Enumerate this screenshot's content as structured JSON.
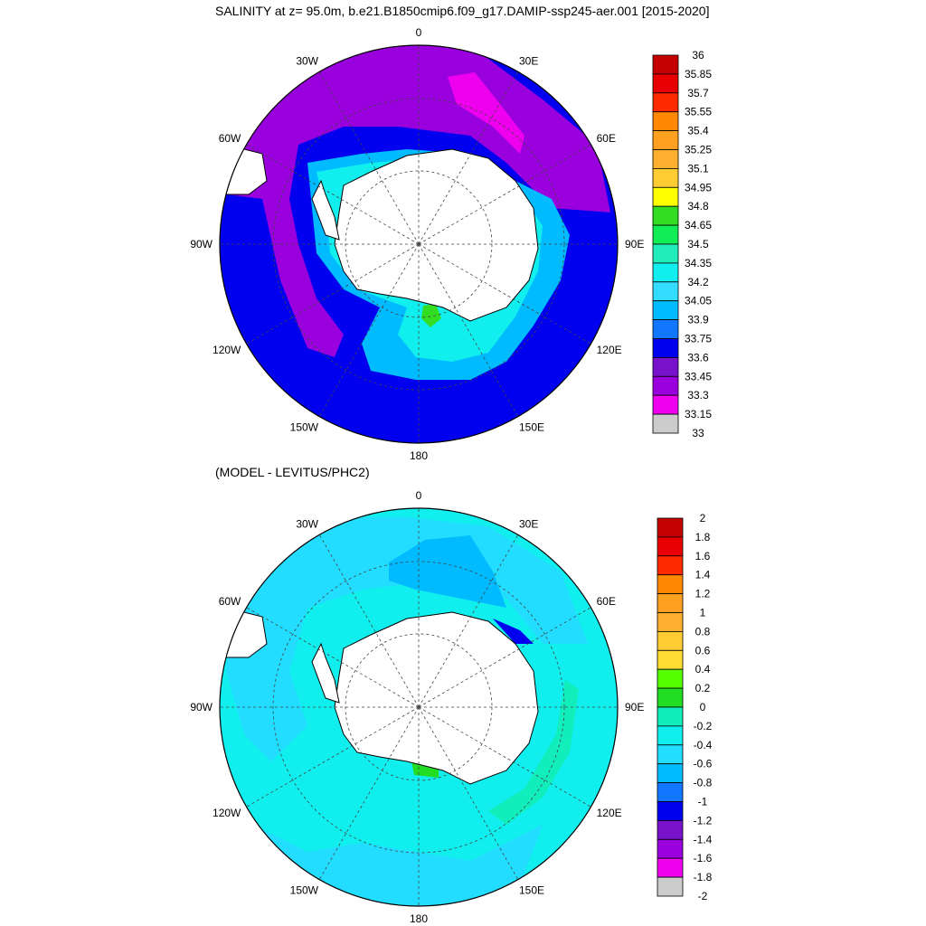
{
  "figure": {
    "title": "SALINITY at z=  95.0m, b.e21.B1850cmip6.f09_g17.DAMIP-ssp245-aer.001 [2015-2020]",
    "subtitle": "(MODEL - LEVITUS/PHC2)"
  },
  "longitude_labels": [
    "0",
    "30E",
    "60E",
    "90E",
    "120E",
    "150E",
    "180",
    "150W",
    "120W",
    "90W",
    "60W",
    "30W"
  ],
  "maps": [
    {
      "name": "salinity",
      "levels": [
        "36",
        "35.85",
        "35.7",
        "35.55",
        "35.4",
        "35.25",
        "35.1",
        "34.95",
        "34.8",
        "34.65",
        "34.5",
        "34.35",
        "34.2",
        "34.05",
        "33.9",
        "33.75",
        "33.6",
        "33.45",
        "33.3",
        "33.15",
        "33"
      ],
      "colors": [
        "#c40000",
        "#e80000",
        "#ff2a00",
        "#ff8800",
        "#ffa020",
        "#ffb030",
        "#ffcc33",
        "#ffff00",
        "#33dd22",
        "#11ee55",
        "#22eebb",
        "#11eeee",
        "#33ddff",
        "#00bbff",
        "#1177ff",
        "#0000ee",
        "#7711cc",
        "#9900dd",
        "#ee00ee",
        "#cccccc",
        "#777777"
      ]
    },
    {
      "name": "difference",
      "levels": [
        "2",
        "1.8",
        "1.6",
        "1.4",
        "1.2",
        "1",
        "0.8",
        "0.6",
        "0.4",
        "0.2",
        "0",
        "-0.2",
        "-0.4",
        "-0.6",
        "-0.8",
        "-1",
        "-1.2",
        "-1.4",
        "-1.6",
        "-1.8",
        "-2"
      ],
      "colors": [
        "#c40000",
        "#e80000",
        "#ff2a00",
        "#ff8800",
        "#ffa020",
        "#ffb030",
        "#ffcc33",
        "#ffdd33",
        "#55ff00",
        "#22dd22",
        "#11eebb",
        "#11eeee",
        "#22ddff",
        "#00bbff",
        "#1177ff",
        "#0000ee",
        "#7711cc",
        "#9900dd",
        "#ee00ee",
        "#cccccc",
        "#777777"
      ]
    }
  ]
}
